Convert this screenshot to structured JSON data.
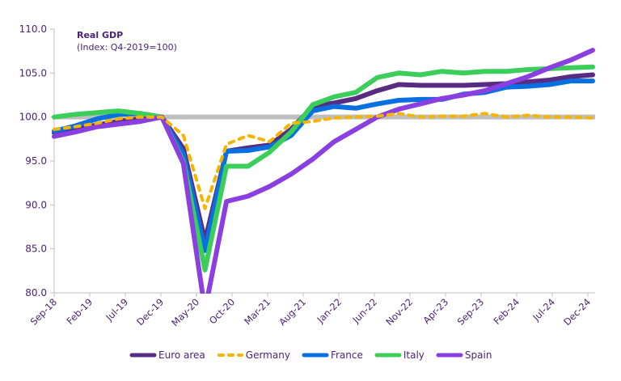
{
  "chart_data": {
    "type": "line",
    "title": "Real GDP",
    "subtitle": "(Index: Q4-2019=100)",
    "xlabel": "",
    "ylabel": "",
    "ylim": [
      80,
      110
    ],
    "yticks": [
      "110.0",
      "105.0",
      "100.0",
      "95.0",
      "90.0",
      "85.0",
      "80.0"
    ],
    "ytick_values": [
      110,
      105,
      100,
      95,
      90,
      85,
      80
    ],
    "xtick_labels": [
      "Sep-18",
      "Feb-19",
      "Jul-19",
      "Dec-19",
      "May-20",
      "Oct-20",
      "Mar-21",
      "Aug-21",
      "Jan-22",
      "Jun-22",
      "Nov-22",
      "Apr-23",
      "Sep-23",
      "Feb-24",
      "Jul-24",
      "Dec-24"
    ],
    "x_months_range": [
      0,
      75
    ],
    "x_note": "x values are months since Sep-18",
    "reference_line": 100,
    "grid": false,
    "legend_position": "bottom",
    "x": [
      0,
      3,
      6,
      9,
      12,
      15,
      18,
      21,
      24,
      27,
      30,
      33,
      36,
      39,
      42,
      45,
      48,
      51,
      54,
      57,
      60,
      63,
      66,
      69,
      72,
      75
    ],
    "series": [
      {
        "name": "Euro area",
        "color": "#582c83",
        "style": "solid",
        "values": [
          98.2,
          98.7,
          99.1,
          99.5,
          99.8,
          100.0,
          96.4,
          85.9,
          96.1,
          96.5,
          96.8,
          98.6,
          101.2,
          101.6,
          102.1,
          103.0,
          103.7,
          103.6,
          103.6,
          103.6,
          103.7,
          103.8,
          104.0,
          104.2,
          104.6,
          104.8
        ]
      },
      {
        "name": "Germany",
        "color": "#f5b400",
        "style": "dashed",
        "values": [
          98.6,
          98.9,
          99.3,
          99.8,
          100.0,
          100.0,
          97.9,
          89.6,
          96.9,
          97.9,
          97.2,
          99.3,
          99.5,
          99.9,
          100.0,
          100.1,
          100.4,
          100.0,
          100.1,
          100.1,
          100.4,
          100.0,
          100.2,
          100.0,
          100.0,
          99.9
        ]
      },
      {
        "name": "France",
        "color": "#0a6fe0",
        "style": "solid",
        "values": [
          98.4,
          99.0,
          99.8,
          100.3,
          100.4,
          100.0,
          95.8,
          84.8,
          96.1,
          96.2,
          96.6,
          97.9,
          100.7,
          101.2,
          101.0,
          101.5,
          101.9,
          102.0,
          102.0,
          102.6,
          102.8,
          103.4,
          103.5,
          103.7,
          104.1,
          104.1
        ]
      },
      {
        "name": "Italy",
        "color": "#3cce5a",
        "style": "solid",
        "values": [
          100.0,
          100.3,
          100.5,
          100.7,
          100.4,
          100.0,
          94.9,
          82.6,
          94.4,
          94.4,
          96.0,
          98.3,
          101.4,
          102.3,
          102.8,
          104.5,
          105.0,
          104.8,
          105.2,
          105.0,
          105.2,
          105.2,
          105.4,
          105.5,
          105.6,
          105.7
        ]
      },
      {
        "name": "Spain",
        "color": "#8a3fe0",
        "style": "solid",
        "values": [
          97.8,
          98.3,
          98.9,
          99.2,
          99.5,
          100.0,
          94.7,
          78.0,
          90.4,
          91.0,
          92.1,
          93.5,
          95.2,
          97.2,
          98.6,
          100.0,
          100.9,
          101.5,
          102.1,
          102.5,
          103.0,
          103.8,
          104.6,
          105.6,
          106.5,
          107.6
        ]
      }
    ]
  }
}
